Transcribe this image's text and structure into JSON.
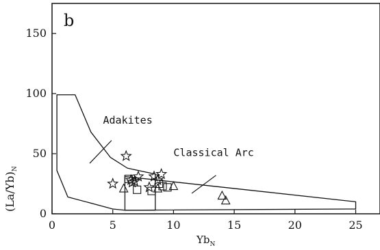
{
  "chart_data": {
    "type": "scatter",
    "panel_label": "b",
    "xlabel": {
      "main": "Yb",
      "sub": "N"
    },
    "ylabel": {
      "main": "(La/Yb)",
      "sub": "N"
    },
    "xlim": [
      0,
      27
    ],
    "ylim": [
      0,
      175
    ],
    "xticks": [
      "0",
      "5",
      "10",
      "15",
      "20",
      "25"
    ],
    "yticks": [
      "0",
      "50",
      "100",
      "150"
    ],
    "grid": false,
    "fields": [
      {
        "label": "Adakites",
        "polygon": [
          [
            0.4,
            99
          ],
          [
            1.9,
            99
          ],
          [
            3.2,
            68
          ],
          [
            4.8,
            47
          ],
          [
            6.2,
            38
          ],
          [
            8.5,
            33
          ],
          [
            8.5,
            3
          ],
          [
            6.0,
            3
          ],
          [
            5.0,
            4
          ],
          [
            1.3,
            14
          ],
          [
            0.4,
            36
          ]
        ],
        "label_pos": [
          4.2,
          75
        ],
        "leader": [
          [
            3.1,
            42
          ],
          [
            4.9,
            61
          ]
        ]
      },
      {
        "label": "Classical Arc",
        "polygon": [
          [
            6.0,
            31
          ],
          [
            25,
            10
          ],
          [
            25,
            4
          ],
          [
            6.0,
            3
          ]
        ],
        "label_pos": [
          10.0,
          48
        ],
        "leader": [
          [
            11.5,
            17
          ],
          [
            13.5,
            32
          ]
        ]
      }
    ],
    "series": [
      {
        "marker": "star",
        "points": [
          [
            6.1,
            48
          ],
          [
            5.0,
            25
          ],
          [
            6.5,
            28
          ],
          [
            6.8,
            27
          ],
          [
            7.1,
            31
          ],
          [
            6.6,
            26
          ],
          [
            8.0,
            22
          ],
          [
            8.4,
            31
          ],
          [
            8.7,
            28
          ],
          [
            9.0,
            33
          ]
        ]
      },
      {
        "marker": "square",
        "points": [
          [
            6.3,
            29
          ],
          [
            7.0,
            20
          ],
          [
            8.2,
            19
          ],
          [
            8.8,
            25
          ],
          [
            9.1,
            23
          ],
          [
            9.5,
            22
          ]
        ]
      },
      {
        "marker": "triangle",
        "points": [
          [
            5.9,
            21
          ],
          [
            8.7,
            21
          ],
          [
            10.0,
            23
          ],
          [
            14.0,
            15
          ],
          [
            14.3,
            11
          ]
        ]
      }
    ]
  }
}
